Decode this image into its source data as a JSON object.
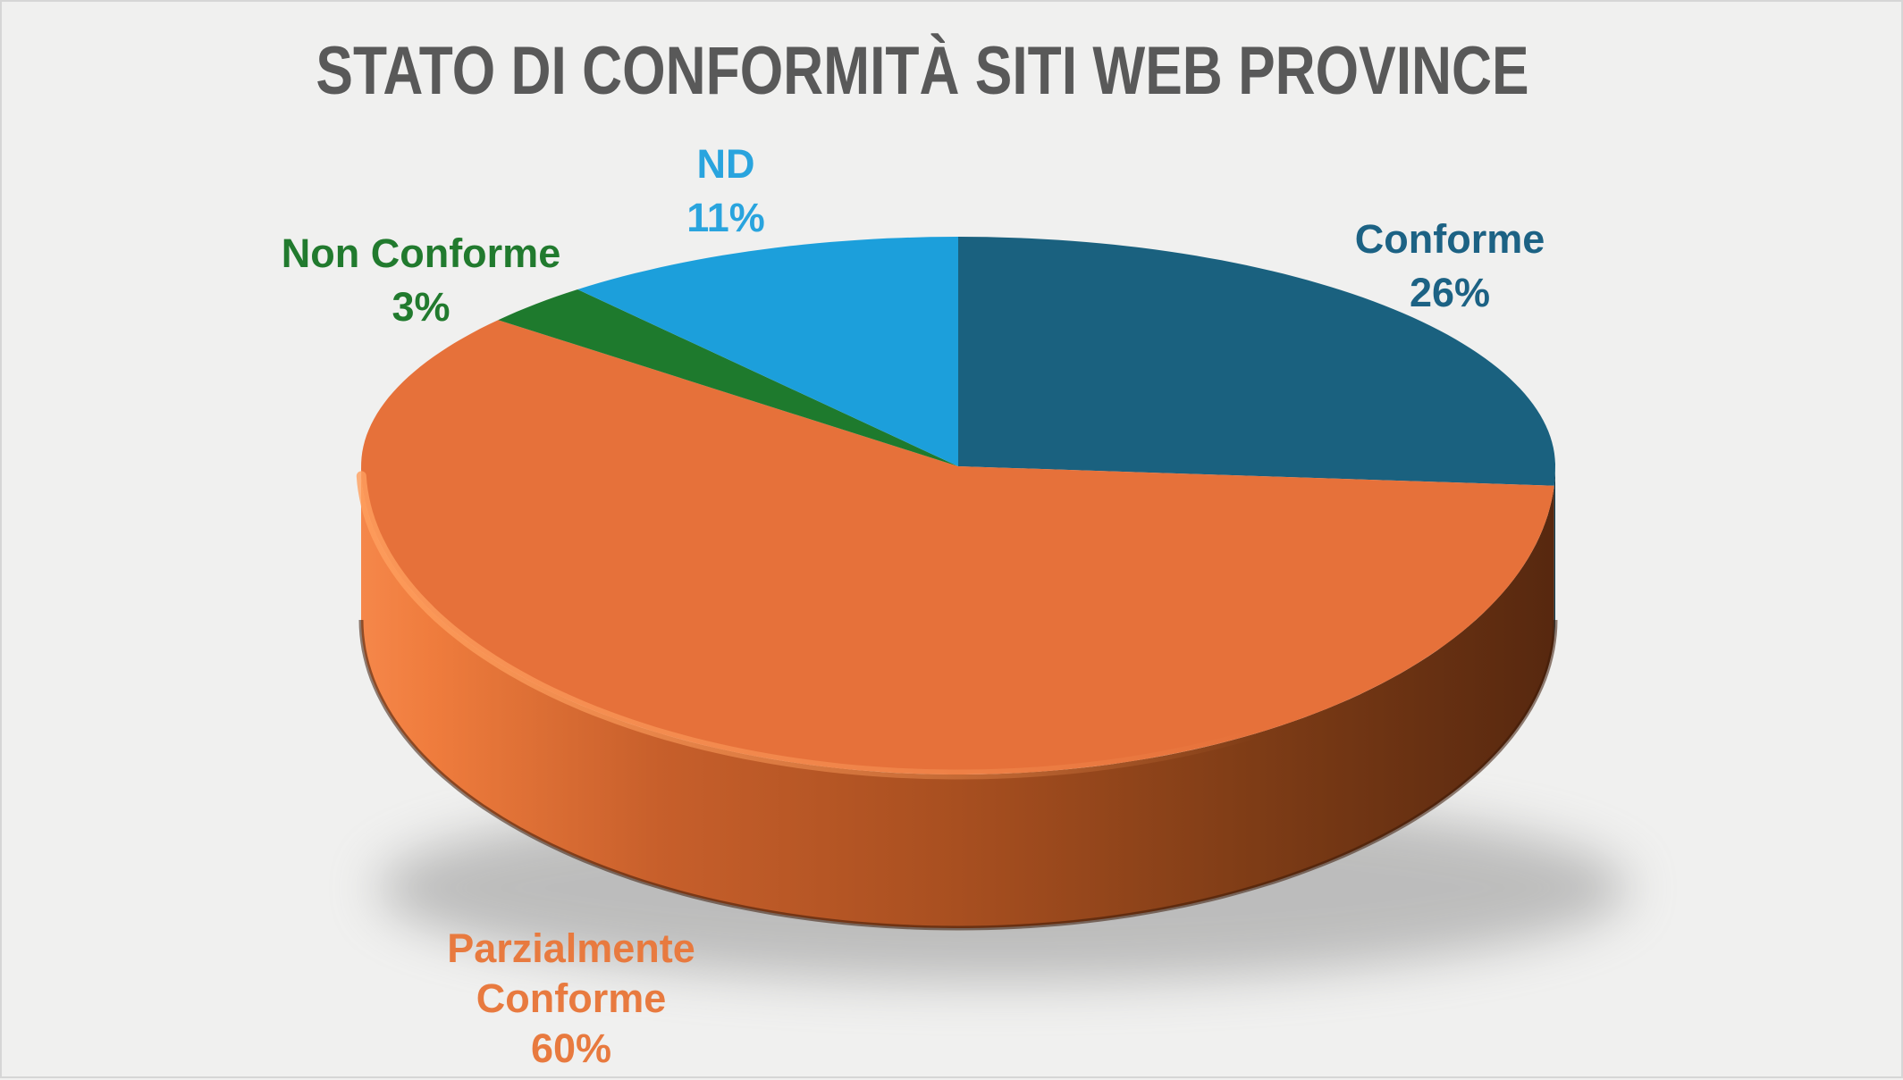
{
  "style": {
    "background": "#f0f0ef",
    "frame_border": "#d6d6d6",
    "shadow_color": "#8a8a8a"
  },
  "chart_data": {
    "type": "pie",
    "three_d": true,
    "title": "STATO DI CONFORMITÀ SITI WEB PROVINCE",
    "title_color": "#595959",
    "legend": "none",
    "labels_position": "outside",
    "start_angle_deg": 0,
    "direction": "clockwise",
    "unit": "%",
    "categories": [
      "Conforme",
      "Parzialmente Conforme",
      "Non Conforme",
      "ND"
    ],
    "values": [
      26,
      60,
      3,
      11
    ],
    "slices": [
      {
        "label": "Conforme",
        "value": 26,
        "display": "26%",
        "color": "#1A617F",
        "side_color": "#0F3D51",
        "label_color": "#1C6284"
      },
      {
        "label": "Parzialmente Conforme",
        "value": 60,
        "display": "60%",
        "color": "#E6713A",
        "side_color": "#A84F20",
        "label_color": "#E87A3F"
      },
      {
        "label": "Non Conforme",
        "value": 3,
        "display": "3%",
        "color": "#1E7A2D",
        "side_color": "#12491B",
        "label_color": "#217A2E"
      },
      {
        "label": "ND",
        "value": 11,
        "display": "11%",
        "color": "#1C9FDB",
        "side_color": "#11618C",
        "label_color": "#29A4DE"
      }
    ]
  }
}
